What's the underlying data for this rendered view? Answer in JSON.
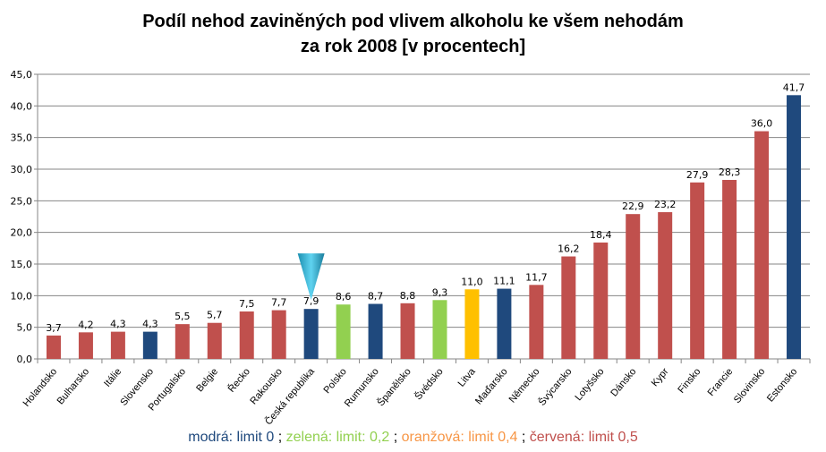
{
  "chart_data": {
    "type": "bar",
    "title_line1": "Podíl nehod zaviněných pod vlivem alkoholu ke všem nehodám",
    "title_line2": "za rok 2008 [v procentech]",
    "xlabel": "",
    "ylabel": "",
    "ylim": [
      0,
      45
    ],
    "yticks": [
      "0,0",
      "5,0",
      "10,0",
      "15,0",
      "20,0",
      "25,0",
      "30,0",
      "35,0",
      "40,0",
      "45,0"
    ],
    "grid": true,
    "categories": [
      "Holandsko",
      "Bulharsko",
      "Itálie",
      "Slovensko",
      "Portugalsko",
      "Belgie",
      "Řecko",
      "Rakousko",
      "Česká republika",
      "Polsko",
      "Rumunsko",
      "Španělsko",
      "Švédsko",
      "Litva",
      "Maďarsko",
      "Německo",
      "Švýcarsko",
      "Lotyšsko",
      "Dánsko",
      "Kypr",
      "Finsko",
      "Francie",
      "Slovinsko",
      "Estonsko"
    ],
    "values": [
      3.7,
      4.2,
      4.3,
      4.3,
      5.5,
      5.7,
      7.5,
      7.7,
      7.9,
      8.6,
      8.7,
      8.8,
      9.3,
      11.0,
      11.1,
      11.7,
      16.2,
      18.4,
      22.9,
      23.2,
      27.9,
      28.3,
      36.0,
      41.7
    ],
    "value_labels": [
      "3,7",
      "4,2",
      "4,3",
      "4,3",
      "5,5",
      "5,7",
      "7,5",
      "7,7",
      "7,9",
      "8,6",
      "8,7",
      "8,8",
      "9,3",
      "11,0",
      "11,1",
      "11,7",
      "16,2",
      "18,4",
      "22,9",
      "23,2",
      "27,9",
      "28,3",
      "36,0",
      "41,7"
    ],
    "bar_groups": [
      "red",
      "red",
      "red",
      "blue",
      "red",
      "red",
      "red",
      "red",
      "blue",
      "green",
      "blue",
      "red",
      "green",
      "orange",
      "blue",
      "red",
      "red",
      "red",
      "red",
      "red",
      "red",
      "red",
      "red",
      "blue"
    ],
    "colors": {
      "red": "#c0504d",
      "blue": "#1f497d",
      "green": "#92d050",
      "orange": "#ffc000"
    },
    "highlight_category": "Česká republika",
    "legend": [
      {
        "text": "modrá: limit 0",
        "color": "#1f497d"
      },
      {
        "text": " ; ",
        "color": "#000000"
      },
      {
        "text": "zelená: limit: 0,2",
        "color": "#92d050"
      },
      {
        "text": " ; ",
        "color": "#000000"
      },
      {
        "text": "oranžová: limit 0,4",
        "color": "#f79646"
      },
      {
        "text": " ; ",
        "color": "#000000"
      },
      {
        "text": "červená: limit 0,5",
        "color": "#c0504d"
      }
    ]
  }
}
